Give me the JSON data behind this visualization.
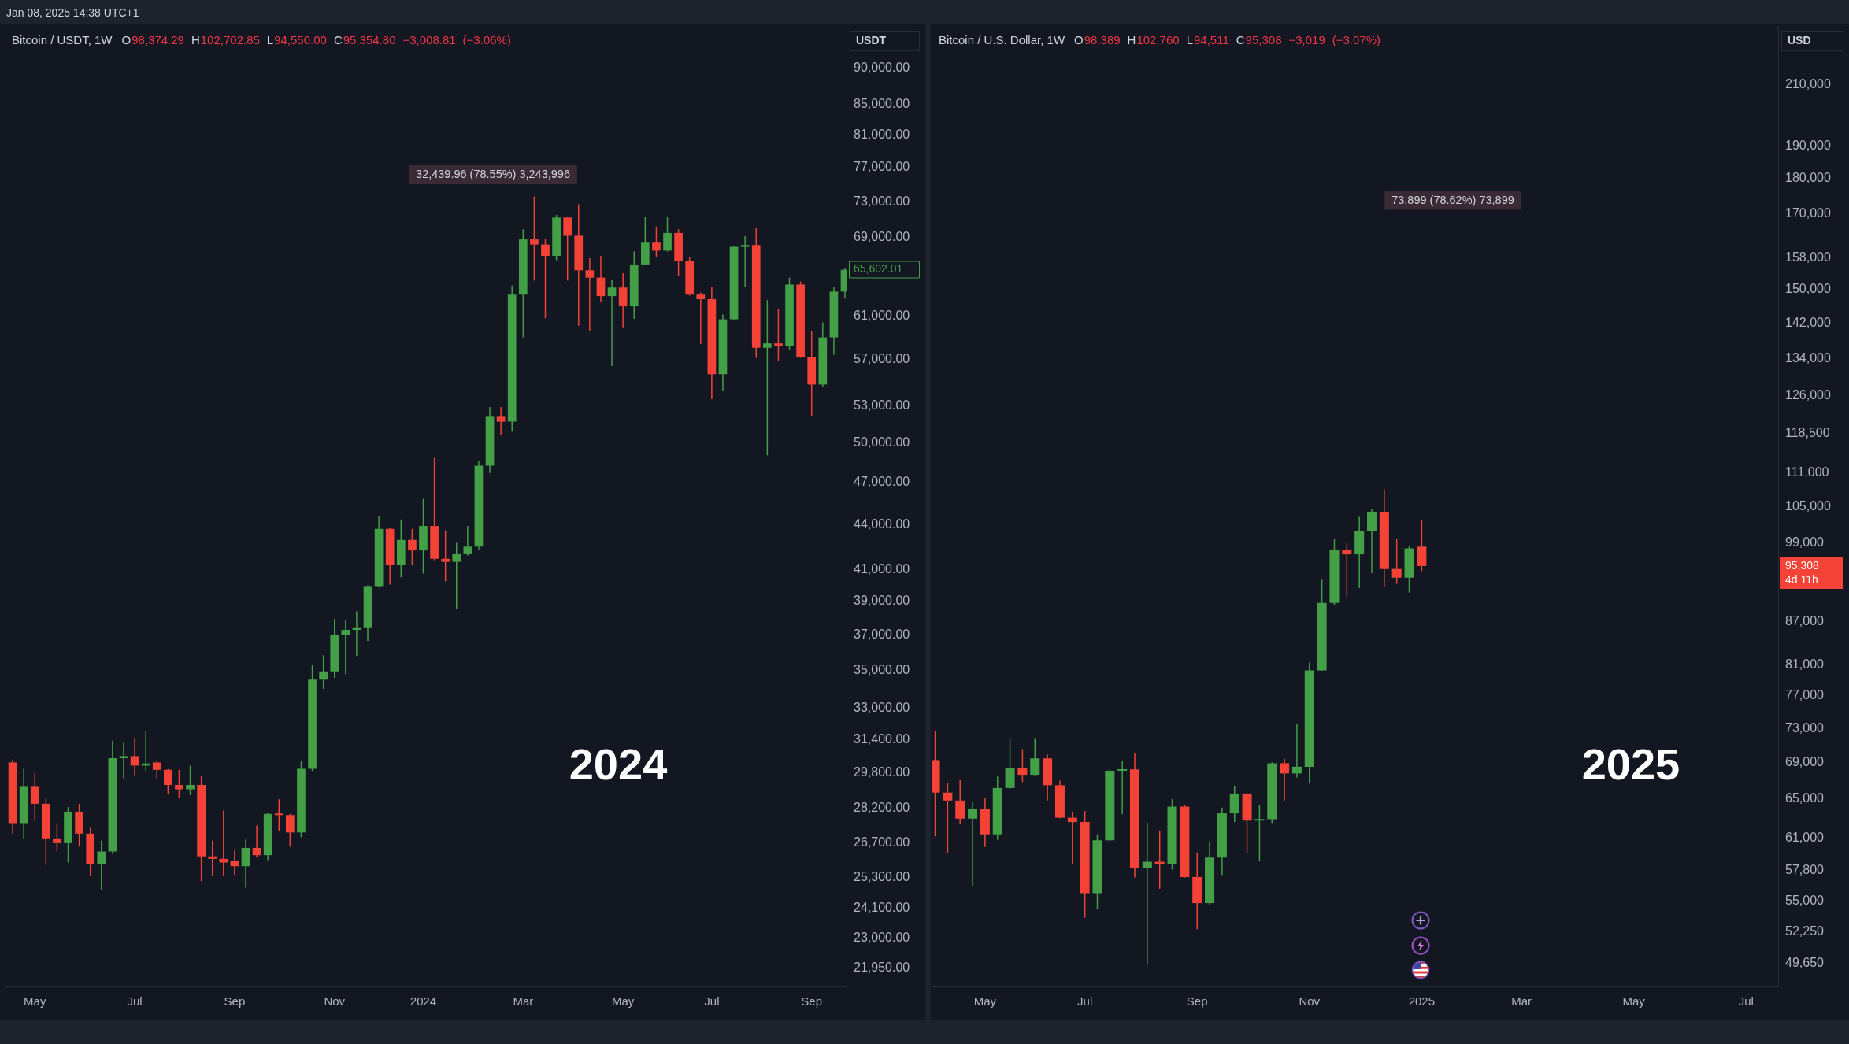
{
  "chart_data": [
    {
      "type": "candlestick",
      "title": "Bitcoin / USDT, 1W",
      "subtitle": "O98,374.29 H102,702.85 L94,550.00 C95,354.80 −3,008.81 (−3.06%)",
      "ylabel": "USDT",
      "x": [
        "2023-04-17",
        "2023-04-24",
        "2023-05-01",
        "2023-05-08",
        "2023-05-15",
        "2023-05-22",
        "2023-05-29",
        "2023-06-05",
        "2023-06-12",
        "2023-06-19",
        "2023-06-26",
        "2023-07-03",
        "2023-07-10",
        "2023-07-17",
        "2023-07-24",
        "2023-07-31",
        "2023-08-07",
        "2023-08-14",
        "2023-08-21",
        "2023-08-28",
        "2023-09-04",
        "2023-09-11",
        "2023-09-18",
        "2023-09-25",
        "2023-10-02",
        "2023-10-09",
        "2023-10-16",
        "2023-10-23",
        "2023-10-30",
        "2023-11-06",
        "2023-11-13",
        "2023-11-20",
        "2023-11-27",
        "2023-12-04",
        "2023-12-11",
        "2023-12-18",
        "2023-12-25",
        "2024-01-01",
        "2024-01-08",
        "2024-01-15",
        "2024-01-22",
        "2024-01-29",
        "2024-02-05",
        "2024-02-12",
        "2024-02-19",
        "2024-02-26",
        "2024-03-04",
        "2024-03-11",
        "2024-03-18",
        "2024-03-25",
        "2024-04-01",
        "2024-04-08",
        "2024-04-15",
        "2024-04-22",
        "2024-04-29",
        "2024-05-06",
        "2024-05-13",
        "2024-05-20",
        "2024-05-27",
        "2024-06-03",
        "2024-06-10",
        "2024-06-17",
        "2024-06-24",
        "2024-07-01",
        "2024-07-08",
        "2024-07-15",
        "2024-07-22",
        "2024-07-29",
        "2024-08-05",
        "2024-08-12",
        "2024-08-19",
        "2024-08-26",
        "2024-09-02",
        "2024-09-09",
        "2024-09-16",
        "2024-09-23"
      ],
      "ohlc": [
        [
          30300,
          30450,
          27100,
          27550
        ],
        [
          27550,
          30000,
          26900,
          29200
        ],
        [
          29200,
          29800,
          27650,
          28400
        ],
        [
          28400,
          28650,
          25800,
          26900
        ],
        [
          26900,
          27550,
          26350,
          26700
        ],
        [
          26700,
          28250,
          25900,
          28050
        ],
        [
          28050,
          28400,
          26550,
          27100
        ],
        [
          27100,
          27350,
          25350,
          25850
        ],
        [
          25850,
          26800,
          24800,
          26350
        ],
        [
          26350,
          31350,
          26250,
          30500
        ],
        [
          30500,
          31250,
          29550,
          30600
        ],
        [
          30600,
          31500,
          29700,
          30150
        ],
        [
          30150,
          31850,
          29900,
          30250
        ],
        [
          30300,
          30400,
          29500,
          29950
        ],
        [
          29950,
          29990,
          28850,
          29250
        ],
        [
          29250,
          29950,
          28650,
          29050
        ],
        [
          29050,
          30150,
          28780,
          29250
        ],
        [
          29250,
          29650,
          25150,
          26150
        ],
        [
          26150,
          26800,
          25350,
          26050
        ],
        [
          26050,
          28100,
          25350,
          25900
        ],
        [
          25950,
          26400,
          25400,
          25750
        ],
        [
          25750,
          26850,
          24900,
          26500
        ],
        [
          26500,
          27450,
          26100,
          26200
        ],
        [
          26200,
          28000,
          26000,
          27950
        ],
        [
          27950,
          28600,
          27200,
          27900
        ],
        [
          27900,
          27950,
          26550,
          27150
        ],
        [
          27150,
          30350,
          26950,
          30000
        ],
        [
          30000,
          35300,
          29900,
          34500
        ],
        [
          34500,
          35850,
          34000,
          34950
        ],
        [
          34950,
          37950,
          34600,
          37000
        ],
        [
          37000,
          37900,
          34800,
          37300
        ],
        [
          37300,
          38400,
          35800,
          37450
        ],
        [
          37450,
          40000,
          36650,
          39950
        ],
        [
          39950,
          44600,
          39900,
          43700
        ],
        [
          43700,
          43800,
          40050,
          41300
        ],
        [
          41300,
          44350,
          40500,
          42950
        ],
        [
          42950,
          43700,
          41300,
          42250
        ],
        [
          42250,
          45800,
          40750,
          43900
        ],
        [
          43900,
          48850,
          41600,
          41700
        ],
        [
          41700,
          43600,
          40250,
          41500
        ],
        [
          41500,
          42750,
          38550,
          42000
        ],
        [
          42000,
          43900,
          41900,
          42500
        ],
        [
          42500,
          48600,
          42300,
          48250
        ],
        [
          48250,
          52900,
          47700,
          52100
        ],
        [
          52100,
          52900,
          50600,
          51700
        ],
        [
          51700,
          64000,
          50900,
          63100
        ],
        [
          63100,
          69900,
          59000,
          68800
        ],
        [
          68800,
          73600,
          64500,
          68250
        ],
        [
          68250,
          68900,
          60800,
          67050
        ],
        [
          67050,
          71500,
          66600,
          71200
        ],
        [
          71200,
          71300,
          64500,
          69200
        ],
        [
          69200,
          72700,
          60100,
          65550
        ],
        [
          65550,
          66800,
          59550,
          64800
        ],
        [
          64800,
          67050,
          62350,
          62950
        ],
        [
          62950,
          64600,
          56400,
          63800
        ],
        [
          63800,
          65250,
          59950,
          61950
        ],
        [
          61950,
          67500,
          60750,
          66150
        ],
        [
          66150,
          71300,
          66100,
          68450
        ],
        [
          68450,
          70200,
          66900,
          67600
        ],
        [
          67600,
          71300,
          67500,
          69500
        ],
        [
          69500,
          69900,
          64950,
          66550
        ],
        [
          66550,
          66950,
          63000,
          63100
        ],
        [
          63100,
          63300,
          58400,
          62650
        ],
        [
          62650,
          63900,
          53550,
          55700
        ],
        [
          55700,
          61150,
          54250,
          60700
        ],
        [
          60700,
          68100,
          60650,
          68000
        ],
        [
          68000,
          69150,
          63900,
          68200
        ],
        [
          68200,
          70100,
          57150,
          58050
        ],
        [
          58050,
          62550,
          49050,
          58450
        ],
        [
          58450,
          61700,
          56850,
          58250
        ],
        [
          58250,
          64800,
          57900,
          64100
        ],
        [
          64100,
          64400,
          57150,
          57250
        ],
        [
          57250,
          59600,
          52150,
          54800
        ],
        [
          54800,
          60400,
          54600,
          59000
        ],
        [
          59000,
          63900,
          57400,
          63400
        ],
        [
          63400,
          65800,
          62700,
          65600
        ]
      ],
      "colors": [
        "#f44336",
        "#43a047",
        "#f44336",
        "#f44336",
        "#f44336",
        "#43a047",
        "#f44336",
        "#f44336",
        "#43a047",
        "#43a047",
        "#43a047",
        "#f44336",
        "#43a047",
        "#f44336",
        "#f44336",
        "#f44336",
        "#43a047",
        "#f44336",
        "#f44336",
        "#f44336",
        "#f44336",
        "#43a047",
        "#f44336",
        "#43a047",
        "#f44336",
        "#f44336",
        "#43a047",
        "#43a047",
        "#43a047",
        "#43a047",
        "#43a047",
        "#43a047",
        "#43a047",
        "#43a047",
        "#f44336",
        "#43a047",
        "#f44336",
        "#43a047",
        "#f44336",
        "#f44336",
        "#43a047",
        "#43a047",
        "#43a047",
        "#43a047",
        "#f44336",
        "#43a047",
        "#43a047",
        "#f44336",
        "#f44336",
        "#43a047",
        "#f44336",
        "#f44336",
        "#f44336",
        "#f44336",
        "#43a047",
        "#f44336",
        "#43a047",
        "#43a047",
        "#f44336",
        "#43a047",
        "#f44336",
        "#f44336",
        "#f44336",
        "#f44336",
        "#43a047",
        "#43a047",
        "#43a047",
        "#f44336",
        "#43a047",
        "#f44336",
        "#43a047",
        "#f44336",
        "#f44336",
        "#43a047",
        "#43a047",
        "#43a047"
      ],
      "xlim": [
        "2023-04-12",
        "2024-09-24"
      ],
      "xticks": [
        {
          "value": "2023-05-01",
          "label": "May"
        },
        {
          "value": "2023-07-03",
          "label": "Jul"
        },
        {
          "value": "2023-09-04",
          "label": "Sep"
        },
        {
          "value": "2023-11-06",
          "label": "Nov"
        },
        {
          "value": "2024-01-01",
          "label": "2024"
        },
        {
          "value": "2024-03-04",
          "label": "Mar"
        },
        {
          "value": "2024-05-06",
          "label": "May"
        },
        {
          "value": "2024-07-01",
          "label": "Jul"
        },
        {
          "value": "2024-09-02",
          "label": "Sep"
        }
      ],
      "ylim": [
        21350,
        96150
      ],
      "yticks": [
        {
          "value": 90000,
          "label": "90,000.00"
        },
        {
          "value": 85000,
          "label": "85,000.00"
        },
        {
          "value": 81000,
          "label": "81,000.00"
        },
        {
          "value": 77000,
          "label": "77,000.00"
        },
        {
          "value": 73000,
          "label": "73,000.00"
        },
        {
          "value": 69000,
          "label": "69,000.00"
        },
        {
          "value": 61000,
          "label": "61,000.00"
        },
        {
          "value": 57000,
          "label": "57,000.00"
        },
        {
          "value": 53000,
          "label": "53,000.00"
        },
        {
          "value": 50000,
          "label": "50,000.00"
        },
        {
          "value": 47000,
          "label": "47,000.00"
        },
        {
          "value": 44000,
          "label": "44,000.00"
        },
        {
          "value": 41000,
          "label": "41,000.00"
        },
        {
          "value": 39000,
          "label": "39,000.00"
        },
        {
          "value": 37000,
          "label": "37,000.00"
        },
        {
          "value": 35000,
          "label": "35,000.00"
        },
        {
          "value": 33000,
          "label": "33,000.00"
        },
        {
          "value": 31400,
          "label": "31,400.00"
        },
        {
          "value": 29800,
          "label": "29,800.00"
        },
        {
          "value": 28200,
          "label": "28,200.00"
        },
        {
          "value": 26700,
          "label": "26,700.00"
        },
        {
          "value": 25300,
          "label": "25,300.00"
        },
        {
          "value": 24100,
          "label": "24,100.00"
        },
        {
          "value": 23000,
          "label": "23,000.00"
        },
        {
          "value": 21950,
          "label": "21,950.00"
        }
      ],
      "log": true,
      "annotations": [
        "2024",
        "32,439.96 (78.55%) 3,243,996",
        "65,602.01",
        "Jan 08, 2025 14:38 UTC+1"
      ]
    },
    {
      "type": "candlestick",
      "title": "Bitcoin / U.S. Dollar, 1W",
      "subtitle": "O98,389 H102,760 L94,511 C95,308 −3,019 (−3.07%)",
      "ylabel": "USD",
      "x": [
        "2024-04-08",
        "2024-04-15",
        "2024-04-22",
        "2024-04-29",
        "2024-05-06",
        "2024-05-13",
        "2024-05-20",
        "2024-05-27",
        "2024-06-03",
        "2024-06-10",
        "2024-06-17",
        "2024-06-24",
        "2024-07-01",
        "2024-07-08",
        "2024-07-15",
        "2024-07-22",
        "2024-07-29",
        "2024-08-05",
        "2024-08-12",
        "2024-08-19",
        "2024-08-26",
        "2024-09-02",
        "2024-09-09",
        "2024-09-16",
        "2024-09-23",
        "2024-09-30",
        "2024-10-07",
        "2024-10-14",
        "2024-10-21",
        "2024-10-28",
        "2024-11-04",
        "2024-11-11",
        "2024-11-18",
        "2024-11-25",
        "2024-12-02",
        "2024-12-09",
        "2024-12-16",
        "2024-12-23",
        "2024-12-30",
        "2025-01-06"
      ],
      "ohlc": [
        [
          69300,
          72700,
          61150,
          65700
        ],
        [
          65700,
          66750,
          59450,
          64850
        ],
        [
          64850,
          67050,
          62450,
          62950
        ],
        [
          62950,
          64650,
          56400,
          63950
        ],
        [
          63950,
          65100,
          60100,
          61350
        ],
        [
          61350,
          67450,
          60800,
          66200
        ],
        [
          66200,
          71850,
          66100,
          68400
        ],
        [
          68400,
          70550,
          66850,
          67650
        ],
        [
          67650,
          71850,
          67600,
          69500
        ],
        [
          69500,
          69950,
          64850,
          66500
        ],
        [
          66500,
          67000,
          63000,
          63050
        ],
        [
          63050,
          63700,
          58450,
          62600
        ],
        [
          62600,
          63750,
          53500,
          55700
        ],
        [
          55700,
          61350,
          54250,
          60750
        ],
        [
          60750,
          68250,
          60650,
          68100
        ],
        [
          68100,
          69250,
          63400,
          68250
        ],
        [
          68250,
          70100,
          57150,
          58050
        ],
        [
          58050,
          62550,
          49500,
          58650
        ],
        [
          58650,
          61750,
          56100,
          58400
        ],
        [
          58400,
          65000,
          57900,
          64200
        ],
        [
          64200,
          64400,
          57150,
          57200
        ],
        [
          57200,
          59550,
          52500,
          54800
        ],
        [
          54800,
          60650,
          54600,
          59050
        ],
        [
          59050,
          64100,
          57400,
          63500
        ],
        [
          63500,
          66450,
          62600,
          65600
        ],
        [
          65600,
          65650,
          59550,
          62750
        ],
        [
          62750,
          64400,
          58750,
          62900
        ],
        [
          62900,
          69050,
          62500,
          68950
        ],
        [
          68950,
          69450,
          64850,
          67800
        ],
        [
          67800,
          73550,
          67350,
          68550
        ],
        [
          68550,
          81350,
          66750,
          80300
        ],
        [
          80300,
          93200,
          80250,
          89700
        ],
        [
          89700,
          99600,
          89350,
          97900
        ],
        [
          97900,
          98950,
          90600,
          97150
        ],
        [
          97150,
          103300,
          91950,
          101000
        ],
        [
          101000,
          104700,
          94200,
          104200
        ],
        [
          104200,
          108100,
          92150,
          94850
        ],
        [
          94850,
          99600,
          92550,
          93500
        ],
        [
          93500,
          98500,
          91250,
          98100
        ],
        [
          98389,
          102760,
          94511,
          95308
        ]
      ],
      "colors": [
        "#f44336",
        "#f44336",
        "#f44336",
        "#43a047",
        "#f44336",
        "#43a047",
        "#43a047",
        "#f44336",
        "#43a047",
        "#f44336",
        "#f44336",
        "#f44336",
        "#f44336",
        "#43a047",
        "#43a047",
        "#43a047",
        "#f44336",
        "#43a047",
        "#f44336",
        "#43a047",
        "#f44336",
        "#f44336",
        "#43a047",
        "#43a047",
        "#43a047",
        "#f44336",
        "#43a047",
        "#43a047",
        "#f44336",
        "#43a047",
        "#43a047",
        "#43a047",
        "#43a047",
        "#f44336",
        "#43a047",
        "#43a047",
        "#f44336",
        "#f44336",
        "#43a047",
        "#f44336"
      ],
      "xlim": [
        "2024-04-06",
        "2025-07-25"
      ],
      "xticks": [
        {
          "value": "2024-05-06",
          "label": "May"
        },
        {
          "value": "2024-07-01",
          "label": "Jul"
        },
        {
          "value": "2024-09-02",
          "label": "Sep"
        },
        {
          "value": "2024-11-04",
          "label": "Nov"
        },
        {
          "value": "2025-01-06",
          "label": "2025"
        },
        {
          "value": "2025-03-03",
          "label": "Mar"
        },
        {
          "value": "2025-05-05",
          "label": "May"
        },
        {
          "value": "2025-07-07",
          "label": "Jul"
        }
      ],
      "ylim": [
        47850,
        231300
      ],
      "yticks": [
        {
          "value": 210000,
          "label": "210,000"
        },
        {
          "value": 190000,
          "label": "190,000"
        },
        {
          "value": 180000,
          "label": "180,000"
        },
        {
          "value": 170000,
          "label": "170,000"
        },
        {
          "value": 158000,
          "label": "158,000"
        },
        {
          "value": 150000,
          "label": "150,000"
        },
        {
          "value": 142000,
          "label": "142,000"
        },
        {
          "value": 134000,
          "label": "134,000"
        },
        {
          "value": 126000,
          "label": "126,000"
        },
        {
          "value": 118500,
          "label": "118,500"
        },
        {
          "value": 111000,
          "label": "111,000"
        },
        {
          "value": 105000,
          "label": "105,000"
        },
        {
          "value": 99000,
          "label": "99,000"
        },
        {
          "value": 87000,
          "label": "87,000"
        },
        {
          "value": 81000,
          "label": "81,000"
        },
        {
          "value": 77000,
          "label": "77,000"
        },
        {
          "value": 73000,
          "label": "73,000"
        },
        {
          "value": 69000,
          "label": "69,000"
        },
        {
          "value": 65000,
          "label": "65,000"
        },
        {
          "value": 61000,
          "label": "61,000"
        },
        {
          "value": 57800,
          "label": "57,800"
        },
        {
          "value": 55000,
          "label": "55,000"
        },
        {
          "value": 52250,
          "label": "52,250"
        },
        {
          "value": 49650,
          "label": "49,650"
        }
      ],
      "log": true,
      "annotations": [
        "2025",
        "73,899 (78.62%) 73,899",
        "95,308\n4d 11h"
      ]
    }
  ]
}
